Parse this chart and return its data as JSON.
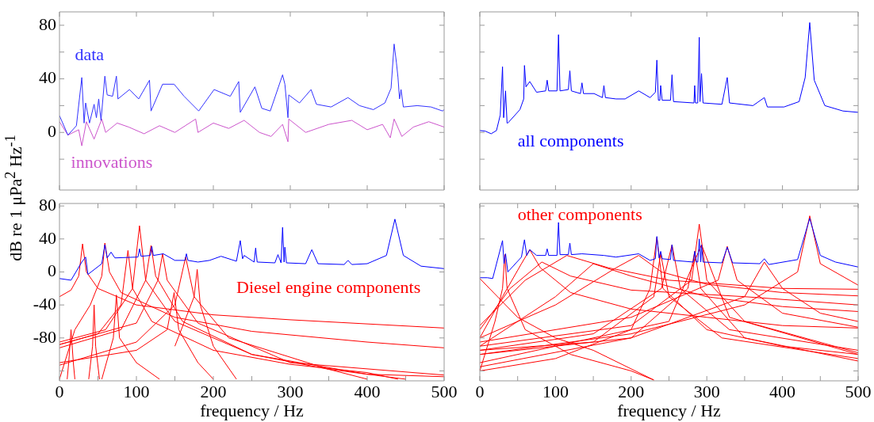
{
  "chart_data": [
    {
      "type": "line",
      "ylabel": "dB re 1 μPa$^{2}$ Hz$^{-1}$",
      "xlim": [
        0,
        500
      ],
      "xticks": [
        0,
        100,
        200,
        300,
        400,
        500
      ],
      "ylim": [
        -43,
        90
      ],
      "yticks": [
        {
          "value": -20,
          "label": null
        },
        0,
        {
          "value": 20,
          "label": null
        },
        40,
        {
          "value": 60,
          "label": null
        },
        80
      ],
      "tick_labels": "y",
      "series": [
        {
          "name": "data",
          "color": "#3333ff",
          "x": [
            0,
            11,
            22,
            29,
            32,
            34,
            39,
            45,
            48,
            51,
            54,
            59,
            62,
            69,
            74,
            76,
            91,
            103,
            117,
            119,
            134,
            149,
            162,
            181,
            201,
            222,
            233,
            235,
            254,
            263,
            274,
            290,
            293,
            297,
            298,
            312,
            327,
            334,
            353,
            375,
            390,
            408,
            423,
            431,
            435,
            438,
            440,
            442,
            444,
            447,
            465,
            483,
            498,
            500
          ],
          "values": [
            12.5,
            -2,
            5,
            41,
            7,
            22,
            7,
            21,
            11,
            25,
            9,
            42,
            28,
            27,
            42,
            25,
            32,
            25,
            39,
            16,
            36,
            36,
            27,
            16,
            32,
            27,
            38,
            15,
            34,
            18,
            16,
            43,
            36,
            11,
            28,
            22,
            32,
            21,
            19,
            26,
            20,
            17,
            22,
            33,
            66,
            52,
            41,
            25,
            32,
            19,
            20,
            19,
            16,
            17
          ]
        },
        {
          "name": "innovations",
          "color": "#cc55cc",
          "x": [
            0,
            11,
            25,
            29,
            35,
            45,
            55,
            60,
            75,
            90,
            110,
            130,
            150,
            177,
            180,
            200,
            220,
            240,
            260,
            275,
            290,
            297,
            298,
            320,
            350,
            380,
            400,
            420,
            430,
            435,
            445,
            460,
            480,
            500
          ],
          "values": [
            8,
            -2,
            2,
            -10,
            8,
            -5,
            10,
            0,
            7,
            4,
            -1,
            5,
            0,
            10,
            0,
            7,
            3,
            9,
            0,
            -3,
            6,
            -7,
            10,
            0,
            6,
            9,
            2,
            6,
            -4,
            10,
            -3,
            4,
            8,
            4
          ]
        }
      ]
    },
    {
      "type": "line",
      "xlim": [
        0,
        500
      ],
      "xticks": [
        0,
        100,
        200,
        300,
        400,
        500
      ],
      "ylim": [
        -43,
        90
      ],
      "yticks": [
        {
          "value": -20,
          "label": null
        },
        0,
        {
          "value": 20,
          "label": null
        },
        40,
        {
          "value": 60,
          "label": null
        },
        80
      ],
      "tick_labels": false,
      "series": [
        {
          "name": "all components",
          "color": "#0000ff",
          "x": [
            0,
            7,
            15,
            22,
            27,
            30,
            31.5,
            34,
            36,
            37,
            53,
            58,
            59,
            61,
            66,
            75,
            87,
            89,
            91,
            102,
            104,
            106,
            117,
            119,
            121,
            133,
            135,
            137,
            151,
            162,
            164,
            166,
            180,
            192,
            210,
            225,
            232,
            234,
            236,
            238,
            239,
            241,
            252,
            254,
            256,
            283,
            284,
            285,
            288,
            290,
            291,
            293,
            295,
            320,
            327,
            330,
            361,
            376,
            380,
            402,
            422,
            430,
            436,
            442,
            456,
            480,
            500
          ],
          "values": [
            1.4,
            1,
            -1,
            1.4,
            13,
            49,
            11,
            31,
            7,
            7,
            17,
            25,
            50,
            34,
            38,
            30,
            31,
            39,
            31,
            31,
            73,
            31,
            32,
            46,
            31,
            29,
            37,
            29,
            29,
            26,
            35,
            26,
            25,
            25,
            31,
            26,
            30,
            54,
            24,
            24,
            35,
            24,
            24,
            43,
            23,
            22,
            35,
            22,
            22,
            71,
            23,
            44,
            22,
            21,
            41,
            22,
            20,
            26,
            19,
            19,
            23,
            41,
            82,
            39,
            20,
            16,
            15
          ]
        }
      ]
    },
    {
      "type": "line",
      "xlabel": "frequency / Hz",
      "xlim": [
        0,
        500
      ],
      "xticks": [
        0,
        {
          "value": 50,
          "label": null
        },
        100,
        {
          "value": 150,
          "label": null
        },
        200,
        {
          "value": 250,
          "label": null
        },
        300,
        {
          "value": 350,
          "label": null
        },
        400,
        {
          "value": 450,
          "label": null
        },
        500
      ],
      "ylim": [
        -132,
        83
      ],
      "yticks": [
        {
          "value": -120,
          "label": null
        },
        -80,
        -40,
        0,
        40,
        80
      ],
      "series": [
        {
          "color": "#0000ff",
          "x": [
            0,
            15,
            29,
            34,
            37,
            55,
            59,
            62,
            67,
            72,
            100,
            102,
            104,
            106,
            118,
            120,
            122,
            135,
            150,
            163,
            165,
            167,
            180,
            195,
            210,
            230,
            235,
            238,
            240,
            253,
            255,
            257,
            280,
            284,
            288,
            290,
            292,
            293,
            295,
            320,
            328,
            336,
            370,
            375,
            380,
            400,
            425,
            436,
            447,
            470,
            500
          ],
          "values": [
            -8,
            -10,
            12,
            18,
            -3,
            10,
            33,
            17,
            24,
            17,
            18,
            18,
            28,
            19,
            20,
            31,
            20,
            22,
            14,
            14,
            22,
            14,
            12,
            14,
            19,
            13,
            38,
            16,
            20,
            12,
            29,
            12,
            11,
            21,
            11,
            54,
            12,
            30,
            11,
            10,
            27,
            10,
            9,
            14,
            9,
            10,
            20,
            64,
            20,
            7,
            4
          ]
        },
        {
          "name": "Diesel engine components",
          "color": "#ff0000",
          "x": [
            0,
            15,
            25,
            30,
            35,
            50,
            100,
            200,
            300,
            400,
            500
          ],
          "values": [
            -30,
            -22,
            -5,
            34,
            0,
            -20,
            -40,
            -52,
            -58,
            -63,
            -68
          ]
        },
        {
          "color": "#ff0000",
          "x": [
            0,
            20,
            40,
            55,
            59,
            65,
            80,
            150,
            250,
            400,
            500
          ],
          "values": [
            -130,
            -70,
            -40,
            -5,
            35,
            0,
            -25,
            -55,
            -72,
            -85,
            -92
          ]
        },
        {
          "color": "#ff0000",
          "x": [
            10,
            12,
            15,
            18,
            20
          ],
          "values": [
            -130,
            -110,
            -70,
            -110,
            -130
          ]
        },
        {
          "color": "#ff0000",
          "x": [
            38,
            43,
            45,
            47,
            52
          ],
          "values": [
            -130,
            -90,
            -40,
            -90,
            -130
          ]
        },
        {
          "color": "#ff0000",
          "x": [
            55,
            70,
            74,
            78,
            100,
            130
          ],
          "values": [
            -130,
            -80,
            -28,
            -80,
            -110,
            -130
          ]
        },
        {
          "color": "#ff0000",
          "x": [
            0,
            50,
            80,
            89,
            95,
            120,
            200,
            300,
            400,
            440
          ],
          "values": [
            -88,
            -75,
            -40,
            26,
            -20,
            -60,
            -95,
            -112,
            -122,
            -130
          ]
        },
        {
          "color": "#ff0000",
          "x": [
            0,
            60,
            95,
            104,
            112,
            150,
            250,
            350,
            450
          ],
          "values": [
            -85,
            -70,
            -20,
            56,
            -10,
            -60,
            -100,
            -118,
            -130
          ]
        },
        {
          "color": "#ff0000",
          "x": [
            0,
            80,
            112,
            119,
            125,
            160,
            250,
            400,
            500
          ],
          "values": [
            -92,
            -70,
            -10,
            32,
            -5,
            -60,
            -100,
            -124,
            -127
          ]
        },
        {
          "color": "#ff0000",
          "x": [
            0,
            100,
            128,
            134,
            140,
            180,
            300,
            500
          ],
          "values": [
            -88,
            -62,
            -10,
            22,
            -10,
            -62,
            -110,
            -125
          ]
        },
        {
          "color": "#ff0000",
          "x": [
            0,
            100,
            140,
            149,
            155,
            180,
            200
          ],
          "values": [
            -110,
            -95,
            -70,
            -25,
            -70,
            -110,
            -130
          ]
        },
        {
          "color": "#ff0000",
          "x": [
            0,
            100,
            150,
            164,
            175,
            220,
            350,
            400
          ],
          "values": [
            -113,
            -85,
            -40,
            18,
            -30,
            -80,
            -118,
            -130
          ]
        },
        {
          "color": "#ff0000",
          "x": [
            150,
            175,
            179,
            183,
            200,
            230
          ],
          "values": [
            -90,
            -30,
            3,
            -40,
            -90,
            -130
          ]
        }
      ]
    },
    {
      "type": "line",
      "xlabel": "frequency / Hz",
      "xlim": [
        0,
        500
      ],
      "xticks": [
        0,
        {
          "value": 50,
          "label": null
        },
        100,
        {
          "value": 150,
          "label": null
        },
        200,
        {
          "value": 250,
          "label": null
        },
        300,
        {
          "value": 350,
          "label": null
        },
        400,
        {
          "value": 450,
          "label": null
        },
        500
      ],
      "ylim": [
        -132,
        83
      ],
      "yticks": [
        {
          "value": -120,
          "label": null
        },
        -80,
        -40,
        0,
        40,
        80
      ],
      "tick_labels": "x",
      "series": [
        {
          "color": "#0000ff",
          "x": [
            0,
            10,
            17,
            30,
            32,
            34,
            37,
            55,
            59,
            62,
            66,
            75,
            87,
            89,
            91,
            102,
            104,
            106,
            117,
            119,
            121,
            135,
            164,
            180,
            210,
            225,
            232,
            234,
            237,
            239,
            241,
            252,
            254,
            256,
            282,
            284,
            286,
            288,
            290,
            292,
            293,
            295,
            320,
            327,
            334,
            370,
            376,
            382,
            420,
            436,
            450,
            470,
            500
          ],
          "values": [
            -7,
            -7,
            -8,
            38,
            10,
            22,
            0,
            18,
            39,
            20,
            27,
            20,
            20,
            28,
            20,
            20,
            60,
            21,
            21,
            35,
            21,
            22,
            20,
            18,
            22,
            14,
            16,
            43,
            17,
            25,
            16,
            15,
            33,
            14,
            12,
            25,
            12,
            12,
            40,
            12,
            33,
            12,
            11,
            30,
            11,
            10,
            16,
            9,
            15,
            65,
            20,
            12,
            6
          ]
        },
        {
          "name": "other components",
          "color": "#ff0000",
          "x": [
            0,
            200,
            350,
            420,
            436,
            450,
            500
          ],
          "values": [
            -100,
            -75,
            -40,
            0,
            68,
            10,
            -16
          ]
        },
        {
          "color": "#ff0000",
          "x": [
            0,
            20,
            30,
            33,
            36,
            60,
            120,
            200,
            230
          ],
          "values": [
            -120,
            -60,
            -20,
            21,
            -20,
            -70,
            -100,
            -120,
            -131
          ]
        },
        {
          "color": "#ff0000",
          "x": [
            0,
            30,
            55,
            66,
            80,
            120,
            200,
            300,
            400,
            500
          ],
          "values": [
            -80,
            -30,
            10,
            27,
            5,
            -25,
            -45,
            -55,
            -65,
            -68
          ]
        },
        {
          "color": "#ff0000",
          "x": [
            0,
            40,
            82,
            120,
            200,
            350,
            500
          ],
          "values": [
            -70,
            -20,
            12,
            -5,
            -22,
            -30,
            -40
          ]
        },
        {
          "color": "#ff0000",
          "x": [
            0,
            60,
            115,
            170,
            250,
            400,
            500
          ],
          "values": [
            -65,
            -10,
            20,
            5,
            -10,
            -20,
            -21
          ]
        },
        {
          "color": "#ff0000",
          "x": [
            0,
            100,
            150,
            200,
            300,
            400,
            500
          ],
          "values": [
            -90,
            -30,
            10,
            -5,
            -30,
            -42,
            -48
          ]
        },
        {
          "color": "#ff0000",
          "x": [
            0,
            100,
            180,
            210,
            240,
            300,
            400,
            500
          ],
          "values": [
            -80,
            -40,
            5,
            20,
            0,
            -15,
            -25,
            -29
          ]
        },
        {
          "color": "#ff0000",
          "x": [
            0,
            100,
            200,
            225,
            234,
            242,
            300,
            400,
            500
          ],
          "values": [
            -120,
            -105,
            -70,
            -20,
            42,
            -20,
            -70,
            -90,
            -100
          ]
        },
        {
          "color": "#ff0000",
          "x": [
            0,
            150,
            230,
            239,
            250,
            320,
            500
          ],
          "values": [
            -95,
            -85,
            -30,
            22,
            -30,
            -80,
            -105
          ]
        },
        {
          "color": "#ff0000",
          "x": [
            0,
            150,
            240,
            254,
            265,
            330,
            500
          ],
          "values": [
            -95,
            -75,
            -20,
            33,
            -20,
            -70,
            -95
          ]
        },
        {
          "color": "#ff0000",
          "x": [
            0,
            200,
            275,
            284,
            292,
            350,
            500
          ],
          "values": [
            -100,
            -80,
            -20,
            25,
            -20,
            -80,
            -108
          ]
        },
        {
          "color": "#ff0000",
          "x": [
            0,
            200,
            280,
            290,
            300,
            350,
            500
          ],
          "values": [
            -90,
            -65,
            -10,
            58,
            -10,
            -60,
            -98
          ]
        },
        {
          "color": "#ff0000",
          "x": [
            0,
            250,
            293,
            330,
            500
          ],
          "values": [
            -110,
            -60,
            33,
            -55,
            -100
          ]
        },
        {
          "color": "#ff0000",
          "x": [
            0,
            200,
            315,
            327,
            340,
            400,
            500
          ],
          "values": [
            -85,
            -55,
            -10,
            31,
            -10,
            -50,
            -67
          ]
        },
        {
          "color": "#ff0000",
          "x": [
            0,
            200,
            350,
            376,
            400,
            450,
            500
          ],
          "values": [
            -115,
            -80,
            -30,
            12,
            -20,
            -50,
            -60
          ]
        },
        {
          "color": "#ff0000",
          "x": [
            0,
            50,
            100,
            150,
            230
          ],
          "values": [
            -8,
            -55,
            -80,
            -95,
            -131
          ]
        }
      ]
    }
  ]
}
